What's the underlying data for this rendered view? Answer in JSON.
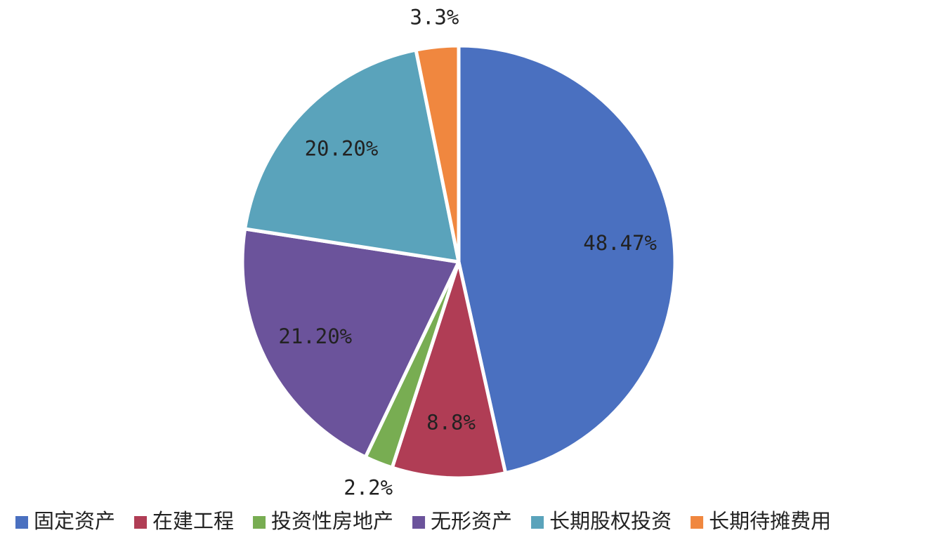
{
  "chart_data": {
    "type": "pie",
    "categories": [
      "固定资产",
      "在建工程",
      "投资性房地产",
      "无形资产",
      "长期股权投资",
      "长期待摊费用"
    ],
    "values": [
      48.47,
      8.8,
      2.2,
      21.2,
      20.2,
      3.3
    ],
    "value_labels": [
      "48.47%",
      "8.8%",
      "2.2%",
      "21.20%",
      "20.20%",
      "3.3%"
    ],
    "colors": [
      "#4a70c0",
      "#b03d55",
      "#78ad52",
      "#6b539b",
      "#5aa3bb",
      "#f0873f"
    ],
    "legend": "bottom"
  }
}
